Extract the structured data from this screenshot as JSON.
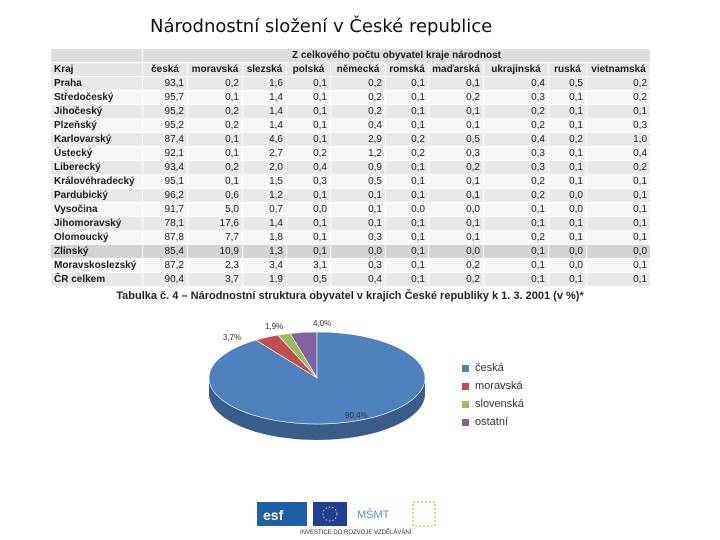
{
  "title": "Národnostní složení v České republice",
  "table": {
    "group_header": "Z celkového počtu obyvatel kraje národnost",
    "region_header": "Kraj",
    "columns": [
      "česká",
      "moravská",
      "slezská",
      "polská",
      "německá",
      "romská",
      "maďarská",
      "ukrajinská",
      "ruská",
      "vietnamská"
    ],
    "rows": [
      {
        "region": "Praha",
        "values": [
          "93,1",
          "0,2",
          "1,6",
          "0,1",
          "0,2",
          "0,1",
          "0,1",
          "0,4",
          "0,5",
          "0,2"
        ]
      },
      {
        "region": "Středočeský",
        "values": [
          "95,7",
          "0,1",
          "1,4",
          "0,1",
          "0,2",
          "0,1",
          "0,2",
          "0,3",
          "0,1",
          "0,2"
        ]
      },
      {
        "region": "Jihočeský",
        "values": [
          "95,2",
          "0,2",
          "1,4",
          "0,1",
          "0,2",
          "0,1",
          "0,1",
          "0,2",
          "0,1",
          "0,1"
        ]
      },
      {
        "region": "Plzeňský",
        "values": [
          "95,2",
          "0,2",
          "1,4",
          "0,1",
          "0,4",
          "0,1",
          "0,1",
          "0,2",
          "0,1",
          "0,3"
        ]
      },
      {
        "region": "Karlovarský",
        "values": [
          "87,4",
          "0,1",
          "4,6",
          "0,1",
          "2,9",
          "0,2",
          "0,5",
          "0,4",
          "0,2",
          "1,0"
        ]
      },
      {
        "region": "Ústecký",
        "values": [
          "92,1",
          "0,1",
          "2,7",
          "0,2",
          "1,2",
          "0,2",
          "0,3",
          "0,3",
          "0,1",
          "0,4"
        ]
      },
      {
        "region": "Liberecký",
        "values": [
          "93,4",
          "0,2",
          "2,0",
          "0,4",
          "0,9",
          "0,1",
          "0,2",
          "0,3",
          "0,1",
          "0,2"
        ]
      },
      {
        "region": "Královéhradecký",
        "values": [
          "95,1",
          "0,1",
          "1,5",
          "0,3",
          "0,5",
          "0,1",
          "0,1",
          "0,2",
          "0,1",
          "0,1"
        ]
      },
      {
        "region": "Pardubický",
        "values": [
          "96,2",
          "0,6",
          "1,2",
          "0,1",
          "0,1",
          "0,1",
          "0,1",
          "0,2",
          "0,0",
          "0,1"
        ]
      },
      {
        "region": "Vysočina",
        "values": [
          "91,7",
          "5,0",
          "0,7",
          "0,0",
          "0,1",
          "0,0",
          "0,0",
          "0,1",
          "0,0",
          "0,1"
        ]
      },
      {
        "region": "Jihomoravský",
        "values": [
          "78,1",
          "17,6",
          "1,4",
          "0,1",
          "0,1",
          "0,1",
          "0,1",
          "0,1",
          "0,1",
          "0,1"
        ]
      },
      {
        "region": "Olomoucký",
        "values": [
          "87,8",
          "7,7",
          "1,8",
          "0,1",
          "0,3",
          "0,1",
          "0,1",
          "0,2",
          "0,1",
          "0,1"
        ]
      },
      {
        "region": "Zlínský",
        "values": [
          "85,4",
          "10,9",
          "1,3",
          "0,1",
          "0,0",
          "0,1",
          "0,0",
          "0,1",
          "0,0",
          "0,0"
        ]
      },
      {
        "region": "Moravskoslezský",
        "values": [
          "87,2",
          "2,3",
          "3,4",
          "3,1",
          "0,3",
          "0,1",
          "0,2",
          "0,1",
          "0,0",
          "0,1"
        ]
      },
      {
        "region": "ČR celkem",
        "values": [
          "90,4",
          "3,7",
          "1,9",
          "0,5",
          "0,4",
          "0,1",
          "0,2",
          "0,1",
          "0,1",
          "0,1"
        ]
      }
    ]
  },
  "caption": "Tabulka č. 4 – Národnostní struktura obyvatel v krajích České republiky k 1. 3. 2001 (v %)*",
  "chart_data": {
    "type": "pie",
    "categories": [
      "česká",
      "moravská",
      "slovenská",
      "ostatní"
    ],
    "values": [
      90.4,
      3.7,
      1.9,
      4.0
    ],
    "labels": [
      "90,4%",
      "3,7%",
      "1,9%",
      "4,0%"
    ],
    "colors": [
      "#4f81bd",
      "#c0504d",
      "#9bbb59",
      "#8064a2"
    ],
    "legend_position": "right"
  },
  "footer": {
    "logo_labels": [
      "esf",
      "MŠMT"
    ],
    "text": "INVESTICE DO ROZVOJE VZDĚLÁVÁNÍ"
  }
}
